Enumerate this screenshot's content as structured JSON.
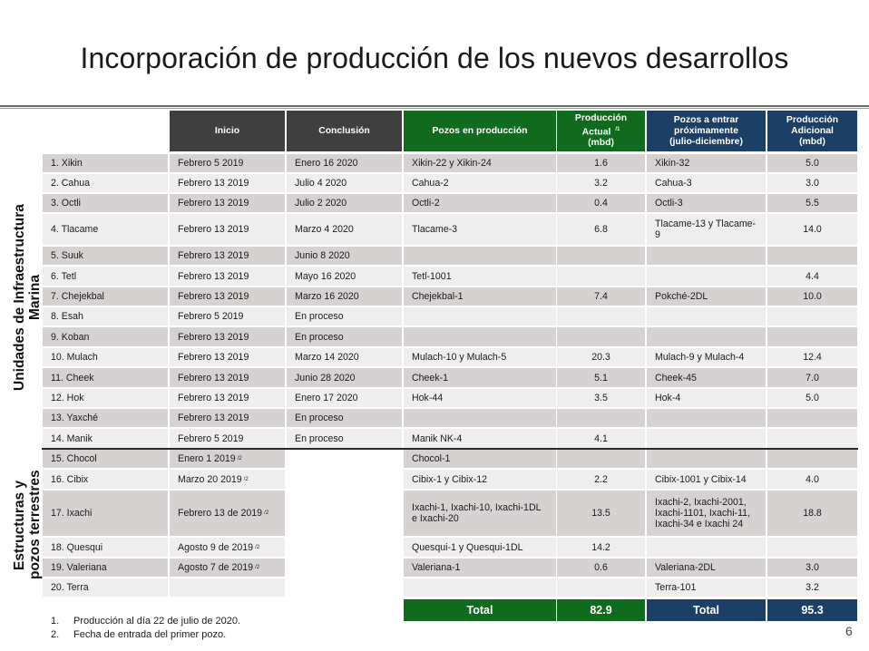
{
  "slide": {
    "title": "Incorporación de producción de los nuevos desarrollos",
    "page_number": "6"
  },
  "table": {
    "headers": {
      "inicio": "Inicio",
      "conclusion": "Conclusión",
      "pozos": "Pozos en producción",
      "prod_actual": "Producción\nActual ",
      "prod_actual_sup": "/1",
      "prod_actual_unit": "(mbd)",
      "pozos_entrar": "Pozos a entrar\npróximamente\n(julio-diciembre)",
      "prod_adicional": "Producción\nAdicional\n(mbd)"
    },
    "group_labels": {
      "marina": "Unidades de Infraestructura\nMarina",
      "terrestres": "Estructuras y\npozos terrestres"
    },
    "rows": [
      {
        "name": "1. Xikin",
        "inicio": "Febrero 5 2019",
        "inicio_sup": "",
        "conclusion": "Enero 16 2020",
        "pozos": "Xikin-22 y Xikin-24",
        "actual": "1.6",
        "entrar": "Xikin-32",
        "adicional": "5.0"
      },
      {
        "name": "2. Cahua",
        "inicio": "Febrero 13 2019",
        "inicio_sup": "",
        "conclusion": "Julio 4 2020",
        "pozos": "Cahua-2",
        "actual": "3.2",
        "entrar": "Cahua-3",
        "adicional": "3.0"
      },
      {
        "name": "3. Octli",
        "inicio": "Febrero 13 2019",
        "inicio_sup": "",
        "conclusion": "Julio 2 2020",
        "pozos": "Octli-2",
        "actual": "0.4",
        "entrar": "Octli-3",
        "adicional": "5.5"
      },
      {
        "name": "4. Tlacame",
        "inicio": "Febrero 13 2019",
        "inicio_sup": "",
        "conclusion": "Marzo 4 2020",
        "pozos": "Tlacame-3",
        "actual": "6.8",
        "entrar": "Tlacame-13 y Tlacame-\n9",
        "adicional": "14.0"
      },
      {
        "name": "5. Suuk",
        "inicio": "Febrero 13 2019",
        "inicio_sup": "",
        "conclusion": "Junio 8 2020",
        "pozos": "",
        "actual": "",
        "entrar": "",
        "adicional": ""
      },
      {
        "name": "6. Tetl",
        "inicio": "Febrero 13 2019",
        "inicio_sup": "",
        "conclusion": "Mayo 16 2020",
        "pozos": "Tetl-1001",
        "actual": "",
        "entrar": "",
        "adicional": "4.4"
      },
      {
        "name": "7. Chejekbal",
        "inicio": "Febrero 13 2019",
        "inicio_sup": "",
        "conclusion": "Marzo 16 2020",
        "pozos": "Chejekbal-1",
        "actual": "7.4",
        "entrar": "Pokché-2DL",
        "adicional": "10.0"
      },
      {
        "name": "8. Esah",
        "inicio": "Febrero 5 2019",
        "inicio_sup": "",
        "conclusion": "En proceso",
        "pozos": "",
        "actual": "",
        "entrar": "",
        "adicional": ""
      },
      {
        "name": "9. Koban",
        "inicio": "Febrero 13 2019",
        "inicio_sup": "",
        "conclusion": "En proceso",
        "pozos": "",
        "actual": "",
        "entrar": "",
        "adicional": ""
      },
      {
        "name": "10. Mulach",
        "inicio": "Febrero 13 2019",
        "inicio_sup": "",
        "conclusion": "Marzo 14 2020",
        "pozos": "Mulach-10 y Mulach-5",
        "actual": "20.3",
        "entrar": "Mulach-9 y Mulach-4",
        "adicional": "12.4"
      },
      {
        "name": "11. Cheek",
        "inicio": "Febrero 13 2019",
        "inicio_sup": "",
        "conclusion": "Junio 28 2020",
        "pozos": "Cheek-1",
        "actual": "5.1",
        "entrar": "Cheek-45",
        "adicional": "7.0"
      },
      {
        "name": "12. Hok",
        "inicio": "Febrero 13 2019",
        "inicio_sup": "",
        "conclusion": "Enero 17 2020",
        "pozos": "Hok-44",
        "actual": "3.5",
        "entrar": "Hok-4",
        "adicional": "5.0"
      },
      {
        "name": "13. Yaxché",
        "inicio": "Febrero 13 2019",
        "inicio_sup": "",
        "conclusion": "En proceso",
        "pozos": "",
        "actual": "",
        "entrar": "",
        "adicional": ""
      },
      {
        "name": "14. Manik",
        "inicio": "Febrero 5 2019",
        "inicio_sup": "",
        "conclusion": "En proceso",
        "pozos": "Manik NK-4",
        "actual": "4.1",
        "entrar": "",
        "adicional": ""
      },
      {
        "name": "15. Chocol",
        "inicio": "Enero 1 2019 ",
        "inicio_sup": "/2",
        "conclusion": null,
        "pozos": "Chocol-1",
        "actual": "",
        "entrar": "",
        "adicional": ""
      },
      {
        "name": "16. Cibix",
        "inicio": "Marzo 20 2019 ",
        "inicio_sup": "/2",
        "conclusion": null,
        "pozos": "Cibix-1 y Cibix-12",
        "actual": "2.2",
        "entrar": "Cibix-1001 y Cibix-14",
        "adicional": "4.0"
      },
      {
        "name": "17. Ixachi",
        "inicio": "Febrero 13 de 2019 ",
        "inicio_sup": "/2",
        "conclusion": null,
        "pozos": "Ixachi-1, Ixachi-10, Ixachi-1DL\ne Ixachi-20",
        "actual": "13.5",
        "entrar": "Ixachi-2, Ixachi-2001,\nIxachi-1101, Ixachi-11,\nIxachi-34 e Ixachi 24",
        "adicional": "18.8"
      },
      {
        "name": "18. Quesqui",
        "inicio": "Agosto 9 de 2019 ",
        "inicio_sup": "/2",
        "conclusion": null,
        "pozos": "Quesqui-1 y Quesqui-1DL",
        "actual": "14.2",
        "entrar": "",
        "adicional": ""
      },
      {
        "name": "19. Valeriana",
        "inicio": "Agosto 7 de 2019 ",
        "inicio_sup": "/2",
        "conclusion": null,
        "pozos": "Valeriana-1",
        "actual": "0.6",
        "entrar": "Valeriana-2DL",
        "adicional": "3.0"
      },
      {
        "name": "20. Terra",
        "inicio": "",
        "inicio_sup": "",
        "conclusion": null,
        "pozos": "",
        "actual": "",
        "entrar": "Terra-101",
        "adicional": "3.2"
      }
    ],
    "totals": {
      "label_left": "Total",
      "value_left": "82.9",
      "label_right": "Total",
      "value_right": "95.3"
    }
  },
  "notes": [
    {
      "num": "1.",
      "text": "Producción al día 22 de julio de 2020."
    },
    {
      "num": "2.",
      "text": "Fecha de entrada del primer pozo."
    }
  ],
  "colors": {
    "header_gray": "#3f3f3f",
    "header_green": "#106b1e",
    "header_blue": "#1c3f66",
    "row_shade": "#d6d2d2",
    "row_light": "#efeeee"
  }
}
